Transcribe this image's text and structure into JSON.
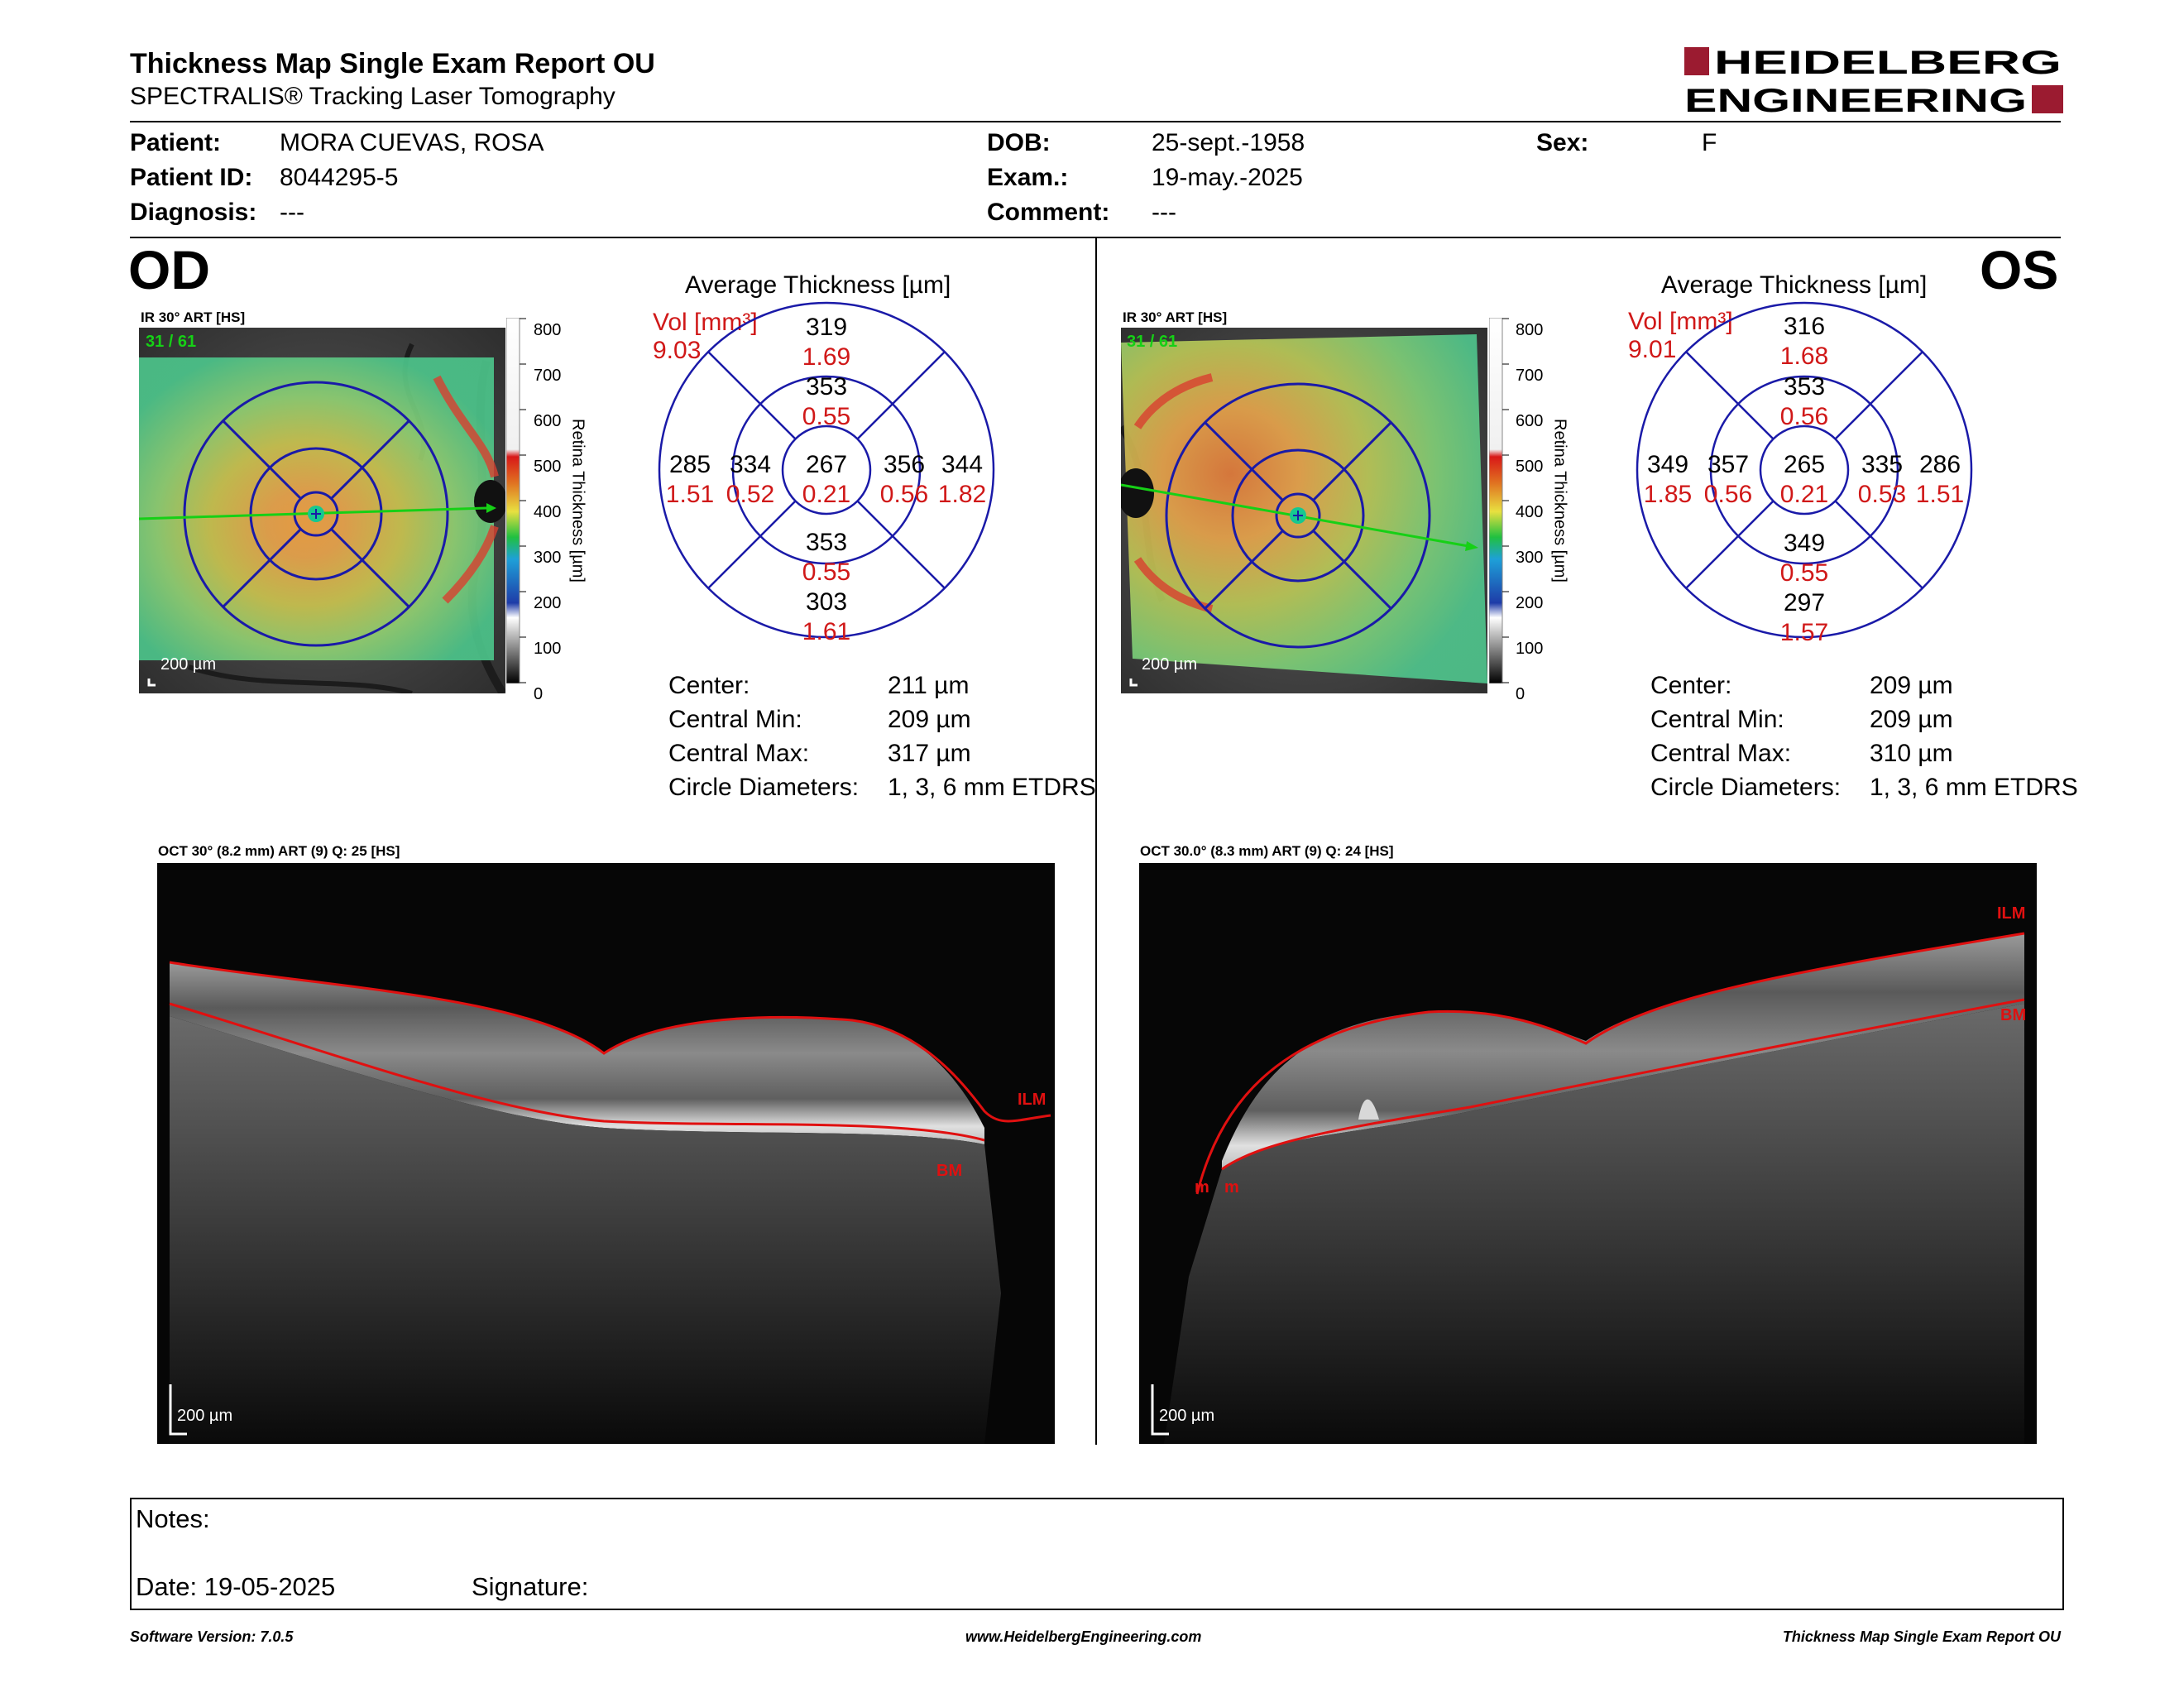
{
  "header": {
    "title": "Thickness Map Single Exam Report OU",
    "subtitle": "SPECTRALIS® Tracking Laser Tomography",
    "logo_line1": "HEIDELBERG",
    "logo_line2": "ENGINEERING",
    "logo_color": "#9b1b30"
  },
  "patient": {
    "patient_label": "Patient:",
    "patient_value": "MORA CUEVAS, ROSA",
    "id_label": "Patient ID:",
    "id_value": "8044295-5",
    "diagnosis_label": "Diagnosis:",
    "diagnosis_value": "---",
    "dob_label": "DOB:",
    "dob_value": "25-sept.-1958",
    "exam_label": "Exam.:",
    "exam_value": "19-may.-2025",
    "comment_label": "Comment:",
    "comment_value": "---",
    "sex_label": "Sex:",
    "sex_value": "F"
  },
  "od": {
    "eye_label": "OD",
    "fundus_caption": "IR 30° ART [HS]",
    "fundus_frame": "31 / 61",
    "scale_label": "200 µm",
    "colorbar_ticks": [
      "800",
      "700",
      "600",
      "500",
      "400",
      "300",
      "200",
      "100",
      "0"
    ],
    "colorbar_title": "Retina Thickness [µm]",
    "avg_title": "Average Thickness [µm]",
    "vol_label": "Vol [mm³]",
    "vol_value": "9.03",
    "grid": {
      "center": {
        "t": "267",
        "v": "0.21"
      },
      "inner_sup": {
        "t": "353",
        "v": "0.55"
      },
      "inner_inf": {
        "t": "353",
        "v": "0.55"
      },
      "inner_left": {
        "t": "334",
        "v": "0.52"
      },
      "inner_right": {
        "t": "356",
        "v": "0.56"
      },
      "outer_sup": {
        "t": "319",
        "v": "1.69"
      },
      "outer_inf": {
        "t": "303",
        "v": "1.61"
      },
      "outer_left": {
        "t": "285",
        "v": "1.51"
      },
      "outer_right": {
        "t": "344",
        "v": "1.82"
      }
    },
    "stats": [
      {
        "label": "Center:",
        "value": "211 µm"
      },
      {
        "label": "Central Min:",
        "value": "209 µm"
      },
      {
        "label": "Central Max:",
        "value": "317 µm"
      },
      {
        "label": "Circle Diameters:",
        "value": "1, 3, 6 mm ETDRS"
      }
    ],
    "oct_caption": "OCT 30° (8.2 mm) ART (9) Q: 25 [HS]",
    "oct_scale": "200 µm",
    "ilm_label": "ILM",
    "bm_label": "BM"
  },
  "os": {
    "eye_label": "OS",
    "fundus_caption": "IR 30° ART [HS]",
    "fundus_frame": "31 / 61",
    "scale_label": "200 µm",
    "colorbar_ticks": [
      "800",
      "700",
      "600",
      "500",
      "400",
      "300",
      "200",
      "100",
      "0"
    ],
    "colorbar_title": "Retina Thickness [µm]",
    "avg_title": "Average Thickness [µm]",
    "vol_label": "Vol [mm³]",
    "vol_value": "9.01",
    "grid": {
      "center": {
        "t": "265",
        "v": "0.21"
      },
      "inner_sup": {
        "t": "353",
        "v": "0.56"
      },
      "inner_inf": {
        "t": "349",
        "v": "0.55"
      },
      "inner_left": {
        "t": "357",
        "v": "0.56"
      },
      "inner_right": {
        "t": "335",
        "v": "0.53"
      },
      "outer_sup": {
        "t": "316",
        "v": "1.68"
      },
      "outer_inf": {
        "t": "297",
        "v": "1.57"
      },
      "outer_left": {
        "t": "349",
        "v": "1.85"
      },
      "outer_right": {
        "t": "286",
        "v": "1.51"
      }
    },
    "stats": [
      {
        "label": "Center:",
        "value": "209 µm"
      },
      {
        "label": "Central Min:",
        "value": "209 µm"
      },
      {
        "label": "Central Max:",
        "value": "310 µm"
      },
      {
        "label": "Circle Diameters:",
        "value": "1, 3, 6 mm ETDRS"
      }
    ],
    "oct_caption": "OCT 30.0° (8.3 mm) ART (9) Q: 24 [HS]",
    "oct_scale": "200 µm",
    "ilm_label": "ILM",
    "bm_label": "BM",
    "m1_label": "m",
    "m2_label": "m"
  },
  "notes": {
    "notes_label": "Notes:",
    "date_label": "Date: 19-05-2025",
    "signature_label": "Signature:"
  },
  "footer": {
    "software": "Software Version: 7.0.5",
    "website": "www.HeidelbergEngineering.com",
    "report": "Thickness Map Single Exam Report OU"
  },
  "colors": {
    "grid_blue": "#1a1aa8",
    "volume_red": "#d01818",
    "green_line": "#16d016"
  }
}
